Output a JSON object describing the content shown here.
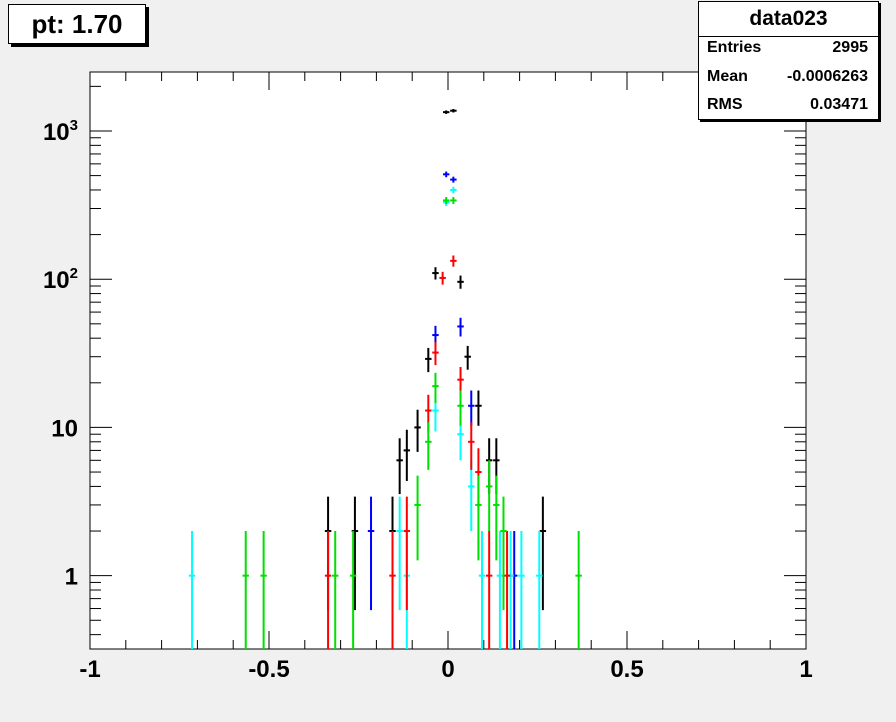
{
  "title": "pt: 1.70",
  "stats": {
    "name": "data023",
    "entries_label": "Entries",
    "entries_value": "2995",
    "mean_label": "Mean",
    "mean_value": "-0.0006263",
    "rms_label": "RMS",
    "rms_value": "0.03471"
  },
  "chart_data": {
    "type": "scatter",
    "xlim": [
      -1,
      1
    ],
    "ylim": [
      0.32,
      2500
    ],
    "yscale": "log",
    "x_ticks": [
      {
        "value": -1,
        "label": "-1"
      },
      {
        "value": -0.5,
        "label": "-0.5"
      },
      {
        "value": 0,
        "label": "0"
      },
      {
        "value": 0.5,
        "label": "0.5"
      },
      {
        "value": 1,
        "label": "1"
      }
    ],
    "y_ticks": [
      {
        "value": 1,
        "label": "1"
      },
      {
        "value": 10,
        "label": "10"
      },
      {
        "value": 100,
        "label": "10",
        "sup": "2"
      },
      {
        "value": 1000,
        "label": "10",
        "sup": "3"
      }
    ],
    "bin_half_width": 0.009,
    "series": [
      {
        "color": "#000000",
        "points": [
          {
            "x": -0.335,
            "y": 2
          },
          {
            "x": -0.26,
            "y": 2
          },
          {
            "x": -0.155,
            "y": 2
          },
          {
            "x": -0.135,
            "y": 6
          },
          {
            "x": -0.115,
            "y": 7
          },
          {
            "x": -0.085,
            "y": 10
          },
          {
            "x": -0.055,
            "y": 29
          },
          {
            "x": -0.035,
            "y": 110
          },
          {
            "x": -0.005,
            "y": 1340
          },
          {
            "x": 0.015,
            "y": 1370
          },
          {
            "x": 0.035,
            "y": 96
          },
          {
            "x": 0.055,
            "y": 30
          },
          {
            "x": 0.085,
            "y": 14
          },
          {
            "x": 0.115,
            "y": 6
          },
          {
            "x": 0.135,
            "y": 6
          },
          {
            "x": 0.265,
            "y": 2
          }
        ]
      },
      {
        "color": "#0000ff",
        "points": [
          {
            "x": -0.215,
            "y": 2
          },
          {
            "x": -0.035,
            "y": 42
          },
          {
            "x": -0.005,
            "y": 510
          },
          {
            "x": 0.015,
            "y": 470
          },
          {
            "x": 0.035,
            "y": 48
          },
          {
            "x": 0.065,
            "y": 14
          },
          {
            "x": 0.185,
            "y": 1
          }
        ]
      },
      {
        "color": "#00ffff",
        "points": [
          {
            "x": -0.715,
            "y": 1
          },
          {
            "x": -0.135,
            "y": 2
          },
          {
            "x": -0.115,
            "y": 1
          },
          {
            "x": -0.035,
            "y": 13
          },
          {
            "x": -0.005,
            "y": 330
          },
          {
            "x": 0.015,
            "y": 400
          },
          {
            "x": 0.035,
            "y": 9
          },
          {
            "x": 0.065,
            "y": 4
          },
          {
            "x": 0.095,
            "y": 1
          },
          {
            "x": 0.145,
            "y": 1
          },
          {
            "x": 0.175,
            "y": 1
          },
          {
            "x": 0.205,
            "y": 1
          },
          {
            "x": 0.255,
            "y": 1
          }
        ]
      },
      {
        "color": "#ff0000",
        "points": [
          {
            "x": -0.335,
            "y": 1
          },
          {
            "x": -0.155,
            "y": 1
          },
          {
            "x": -0.115,
            "y": 2
          },
          {
            "x": -0.055,
            "y": 13
          },
          {
            "x": -0.035,
            "y": 32
          },
          {
            "x": -0.015,
            "y": 102
          },
          {
            "x": 0.015,
            "y": 133
          },
          {
            "x": 0.035,
            "y": 21
          },
          {
            "x": 0.065,
            "y": 8
          },
          {
            "x": 0.085,
            "y": 5
          },
          {
            "x": 0.115,
            "y": 1
          },
          {
            "x": 0.165,
            "y": 1
          }
        ]
      },
      {
        "color": "#00e000",
        "points": [
          {
            "x": -0.565,
            "y": 1
          },
          {
            "x": -0.515,
            "y": 1
          },
          {
            "x": -0.315,
            "y": 1
          },
          {
            "x": -0.265,
            "y": 1
          },
          {
            "x": -0.085,
            "y": 3
          },
          {
            "x": -0.055,
            "y": 8
          },
          {
            "x": -0.035,
            "y": 19
          },
          {
            "x": -0.005,
            "y": 340
          },
          {
            "x": 0.015,
            "y": 340
          },
          {
            "x": 0.035,
            "y": 14
          },
          {
            "x": 0.085,
            "y": 3
          },
          {
            "x": 0.115,
            "y": 4
          },
          {
            "x": 0.135,
            "y": 3
          },
          {
            "x": 0.155,
            "y": 2
          },
          {
            "x": 0.365,
            "y": 1
          }
        ]
      }
    ]
  }
}
